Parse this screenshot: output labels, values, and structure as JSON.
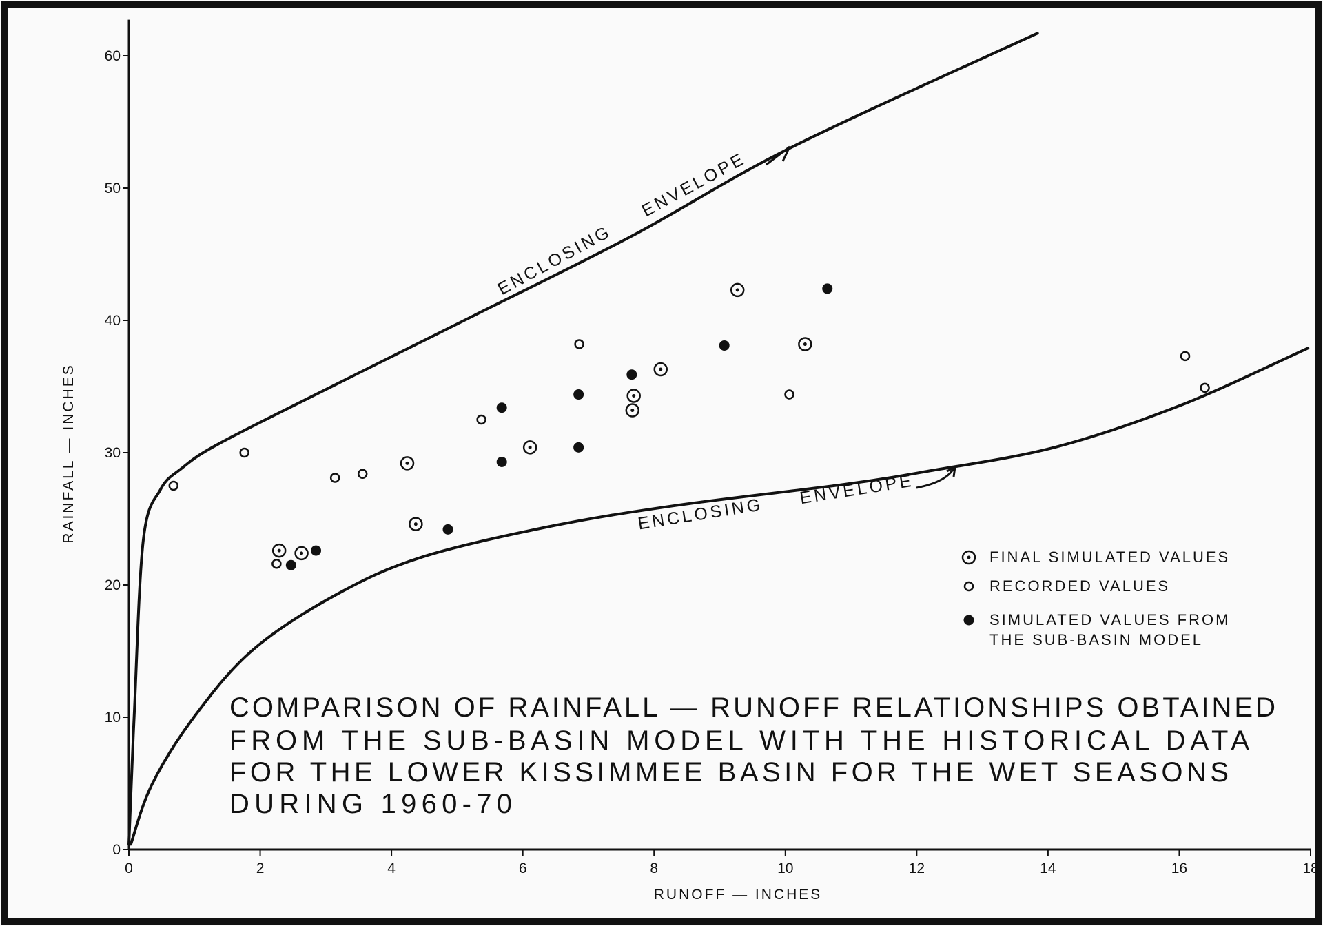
{
  "chart_data": {
    "type": "scatter",
    "title": [
      "COMPARISON OF RAINFALL — RUNOFF RELATIONSHIPS OBTAINED",
      "FROM THE SUB-BASIN MODEL WITH THE HISTORICAL DATA",
      "FOR THE LOWER KISSIMMEE BASIN FOR THE WET SEASONS",
      "DURING 1960-70"
    ],
    "x_label": "RUNOFF — INCHES",
    "y_label": "RAINFALL — INCHES",
    "xlim": [
      0,
      18
    ],
    "ylim": [
      0,
      62
    ],
    "xticks": [
      0,
      2,
      4,
      6,
      8,
      10,
      12,
      14,
      16,
      18
    ],
    "yticks": [
      0,
      10,
      20,
      30,
      40,
      50,
      60
    ],
    "grid": false,
    "legend": "lower right",
    "series": [
      {
        "name": "FINAL SIMULATED VALUES",
        "marker": "circle-dot",
        "color": "#111111",
        "x": [
          2.29,
          2.63,
          4.24,
          4.37,
          6.11,
          7.69,
          7.67,
          8.1,
          9.27,
          10.3
        ],
        "values": [
          22.6,
          22.4,
          29.2,
          24.6,
          30.4,
          34.3,
          33.2,
          36.3,
          42.3,
          38.2
        ]
      },
      {
        "name": "RECORDED VALUES",
        "marker": "circle",
        "color": "#111111",
        "x": [
          0.68,
          1.76,
          2.25,
          3.14,
          3.56,
          5.37,
          6.86,
          10.06,
          16.09,
          16.39
        ],
        "values": [
          27.5,
          30.0,
          21.6,
          28.1,
          28.4,
          32.5,
          38.2,
          34.4,
          37.3,
          34.9
        ]
      },
      {
        "name": "SIMULATED VALUES FROM\nTHE SUB-BASIN MODEL",
        "marker": "filled",
        "color": "#111111",
        "x": [
          2.47,
          2.85,
          4.86,
          5.68,
          5.68,
          6.85,
          6.85,
          7.66,
          9.07,
          10.64
        ],
        "values": [
          21.5,
          22.6,
          24.2,
          33.4,
          29.3,
          34.4,
          30.4,
          35.9,
          38.1,
          42.4
        ]
      }
    ],
    "envelopes": [
      {
        "label": "ENCLOSING     ENVELOPE",
        "color": "#111111",
        "x": [
          0,
          0.08,
          0.22,
          0.48,
          0.8,
          1.38,
          3.17,
          5.23,
          7.67,
          10.1,
          13.84
        ],
        "y": [
          0.4,
          10,
          23.4,
          27.2,
          28.8,
          30.7,
          35.2,
          40.3,
          46.4,
          53.1,
          61.7
        ]
      },
      {
        "label": "ENCLOSING     ENVELOPE",
        "color": "#111111",
        "x": [
          0.03,
          0.35,
          0.99,
          1.89,
          3.17,
          4.46,
          6.39,
          8.32,
          10.89,
          12.17,
          14.1,
          16.03,
          17.96
        ],
        "y": [
          0.4,
          4.9,
          10.0,
          15.1,
          19.3,
          22.1,
          24.4,
          26.0,
          27.6,
          28.6,
          30.4,
          33.6,
          37.9
        ]
      }
    ]
  }
}
